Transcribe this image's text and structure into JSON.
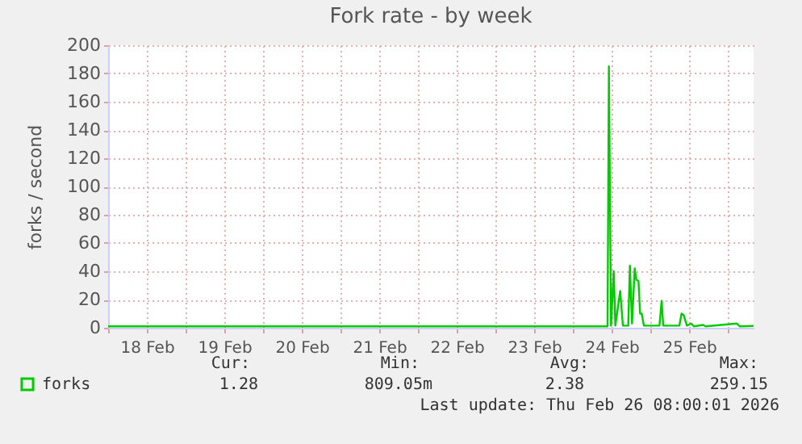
{
  "chart_data": {
    "type": "line",
    "title": "Fork rate - by week",
    "ylabel": "forks / second",
    "x": [
      "2026-02-18T00:00",
      "2026-02-24T10:00",
      "2026-02-24T10:45",
      "2026-02-24T11:10",
      "2026-02-24T11:50",
      "2026-02-24T12:40",
      "2026-02-24T13:10",
      "2026-02-24T14:40",
      "2026-02-24T15:30",
      "2026-02-24T17:10",
      "2026-02-24T17:40",
      "2026-02-24T18:20",
      "2026-02-24T19:10",
      "2026-02-24T19:40",
      "2026-02-24T20:20",
      "2026-02-24T20:50",
      "2026-02-24T21:20",
      "2026-02-24T22:00",
      "2026-02-25T02:50",
      "2026-02-25T03:30",
      "2026-02-25T04:00",
      "2026-02-25T09:00",
      "2026-02-25T09:40",
      "2026-02-25T10:20",
      "2026-02-25T11:20",
      "2026-02-25T12:40",
      "2026-02-25T13:30",
      "2026-02-25T16:20",
      "2026-02-25T17:10",
      "2026-02-26T02:50",
      "2026-02-26T03:40",
      "2026-02-26T08:00"
    ],
    "series": [
      {
        "name": "forks",
        "color": "#00cc00",
        "values": [
          1,
          1,
          1,
          185,
          1.5,
          40,
          1.5,
          26,
          1.5,
          1.5,
          44,
          3,
          42,
          34,
          33,
          10,
          10,
          1.5,
          1.5,
          19,
          1.5,
          1.5,
          10,
          9,
          1.5,
          3,
          1,
          2,
          1,
          3,
          1,
          1.28
        ]
      }
    ],
    "xlim": [
      "2026-02-18T00:00",
      "2026-02-26T08:00"
    ],
    "xticks": [
      {
        "value": "2026-02-18T00:00",
        "label": null
      },
      {
        "value": "2026-02-18T12:00",
        "label": "18 Feb"
      },
      {
        "value": "2026-02-19T00:00",
        "label": null
      },
      {
        "value": "2026-02-19T12:00",
        "label": "19 Feb"
      },
      {
        "value": "2026-02-20T00:00",
        "label": null
      },
      {
        "value": "2026-02-20T12:00",
        "label": "20 Feb"
      },
      {
        "value": "2026-02-21T00:00",
        "label": null
      },
      {
        "value": "2026-02-21T12:00",
        "label": "21 Feb"
      },
      {
        "value": "2026-02-22T00:00",
        "label": null
      },
      {
        "value": "2026-02-22T12:00",
        "label": "22 Feb"
      },
      {
        "value": "2026-02-23T00:00",
        "label": null
      },
      {
        "value": "2026-02-23T12:00",
        "label": "23 Feb"
      },
      {
        "value": "2026-02-24T00:00",
        "label": null
      },
      {
        "value": "2026-02-24T12:00",
        "label": "24 Feb"
      },
      {
        "value": "2026-02-25T00:00",
        "label": null
      },
      {
        "value": "2026-02-25T12:00",
        "label": "25 Feb"
      },
      {
        "value": "2026-02-26T00:00",
        "label": null
      }
    ],
    "ylim": [
      0,
      200
    ],
    "yticks": [
      0,
      20,
      40,
      60,
      80,
      100,
      120,
      140,
      160,
      180,
      200
    ],
    "grid": true,
    "legend": "bottom left",
    "marker": "none",
    "line_style": "solid",
    "annotations": [
      "Cur:",
      "Min:",
      "Avg:",
      "Max:",
      "1.28",
      "809.05m",
      "2.38",
      "259.15",
      "Last update: Thu Feb 26 08:00:01 2026"
    ]
  }
}
